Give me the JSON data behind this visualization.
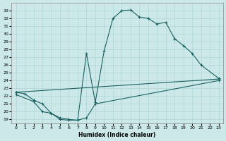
{
  "xlabel": "Humidex (Indice chaleur)",
  "bg_color": "#cce8e8",
  "line_color": "#1a6060",
  "grid_color": "#b0d8d8",
  "xlim": [
    -0.5,
    23.5
  ],
  "ylim": [
    18.5,
    34.0
  ],
  "xticks": [
    0,
    1,
    2,
    3,
    4,
    5,
    6,
    7,
    8,
    9,
    10,
    11,
    12,
    13,
    14,
    15,
    16,
    17,
    18,
    19,
    20,
    21,
    22,
    23
  ],
  "yticks": [
    19,
    20,
    21,
    22,
    23,
    24,
    25,
    26,
    27,
    28,
    29,
    30,
    31,
    32,
    33
  ],
  "series": [
    {
      "x": [
        0,
        1,
        2,
        3,
        4,
        5,
        6,
        7,
        8,
        9,
        10,
        11,
        12,
        13,
        14,
        15,
        16,
        17,
        18
      ],
      "y": [
        22.5,
        22.3,
        21.5,
        21.0,
        19.8,
        19.0,
        18.9,
        18.9,
        27.5,
        21.2,
        27.8,
        32.0,
        33.0,
        33.1,
        32.2,
        32.0,
        31.3,
        31.5,
        29.4
      ]
    },
    {
      "x": [
        18,
        19,
        20,
        21,
        23
      ],
      "y": [
        29.4,
        28.5,
        27.5,
        26.0,
        24.3
      ]
    },
    {
      "x": [
        0,
        23
      ],
      "y": [
        22.5,
        24.2
      ]
    },
    {
      "x": [
        0,
        2,
        3,
        4,
        5,
        6,
        7,
        8,
        9,
        23
      ],
      "y": [
        22.2,
        21.3,
        20.0,
        19.8,
        19.2,
        19.0,
        18.9,
        19.2,
        21.0,
        24.0
      ]
    }
  ]
}
